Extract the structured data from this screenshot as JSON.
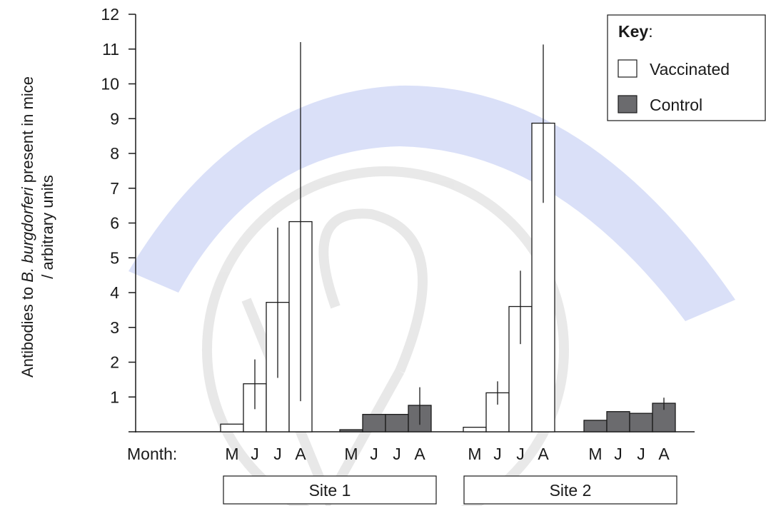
{
  "chart_data": {
    "type": "bar",
    "ylabel_prefix": "Antibodies to ",
    "ylabel_species": "B. burgdorferi",
    "ylabel_suffix": " present in mice",
    "ylabel_line2": "/ arbitrary units",
    "ylim": [
      0,
      12
    ],
    "y_ticks": [
      "1",
      "2",
      "3",
      "4",
      "5",
      "6",
      "7",
      "8",
      "9",
      "10",
      "11",
      "12"
    ],
    "x_row_label": "Month:",
    "month_labels": [
      "M",
      "J",
      "J",
      "A"
    ],
    "grid": false,
    "legend": {
      "placement": "top-right",
      "title": "Key",
      "title_suffix": ":",
      "entries": [
        {
          "name": "Vaccinated",
          "color": "#ffffff"
        },
        {
          "name": "Control",
          "color": "#6b6b6e"
        }
      ]
    },
    "groups": [
      {
        "site": "Site 1",
        "vaccinated": {
          "values": [
            0.22,
            1.38,
            3.72,
            6.04
          ],
          "error_low": [
            0.22,
            0.65,
            1.55,
            0.88
          ],
          "error_high": [
            0.22,
            2.08,
            5.87,
            11.2
          ]
        },
        "control": {
          "values": [
            0.06,
            0.5,
            0.5,
            0.76
          ],
          "error_low": [
            0.06,
            0.5,
            0.5,
            0.2
          ],
          "error_high": [
            0.06,
            0.5,
            0.5,
            1.28
          ]
        }
      },
      {
        "site": "Site 2",
        "vaccinated": {
          "values": [
            0.13,
            1.12,
            3.6,
            8.87
          ],
          "error_low": [
            0.13,
            0.78,
            2.52,
            6.58
          ],
          "error_high": [
            0.13,
            1.45,
            4.63,
            11.13
          ]
        },
        "control": {
          "values": [
            0.33,
            0.58,
            0.53,
            0.82
          ],
          "error_low": [
            0.33,
            0.58,
            0.53,
            0.63
          ],
          "error_high": [
            0.33,
            0.58,
            0.53,
            0.98
          ]
        }
      }
    ]
  },
  "colors": {
    "control_fill": "#6b6b6e",
    "vaccinated_fill": "#ffffff",
    "axis": "#1a1a1a"
  }
}
